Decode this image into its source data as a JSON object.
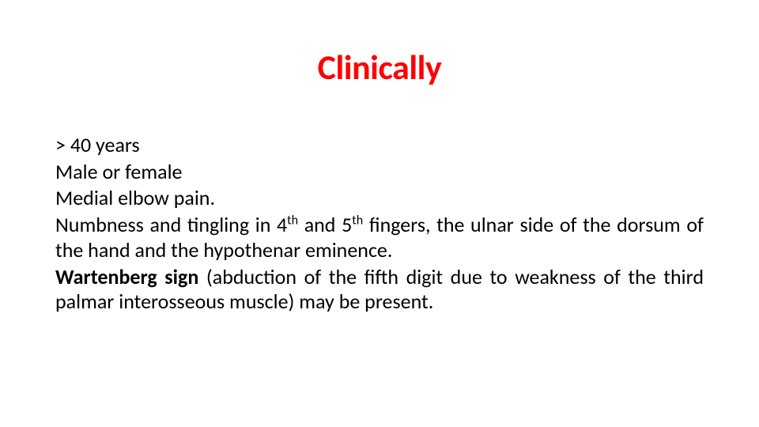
{
  "slide": {
    "title": "Clinically",
    "title_color": "#ff0000",
    "title_fontsize": 44,
    "title_fontweight": 700,
    "body_fontsize": 26,
    "body_color": "#000000",
    "background_color": "#ffffff",
    "lines": {
      "l1": "> 40 years",
      "l2": "Male or female",
      "l3": "Medial elbow pain.",
      "l4_a": "Numbness and tingling in 4",
      "l4_sup1": "th",
      "l4_b": " and 5",
      "l4_sup2": "th",
      "l4_c": " fingers, the ulnar side of the dorsum of the hand and the hypothenar eminence.",
      "l5_bold": "Wartenberg sign",
      "l5_rest": " (abduction of the fifth digit due to weakness of the third palmar interosseous muscle) may be present."
    }
  }
}
